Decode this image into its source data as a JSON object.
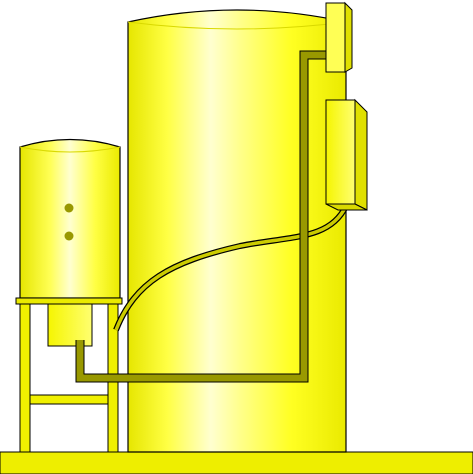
{
  "diagram": {
    "subject": "yellow-storage-tanks-with-piping",
    "colors": {
      "background": "#ffffff",
      "outline": "#000000",
      "tank_light": "#ffffc8",
      "tank_mid": "#ffff66",
      "tank_dark": "#e6e600",
      "tank_edge": "#d9d900",
      "pipe": "#999900",
      "pipe_dark": "#808000",
      "frame": "#f0f000",
      "base": "#eeee00",
      "indicator": "#999900"
    },
    "components": [
      "large-tank",
      "small-tank",
      "support-frame",
      "junction-box-top",
      "control-box",
      "piping",
      "hose",
      "base-platform"
    ]
  }
}
